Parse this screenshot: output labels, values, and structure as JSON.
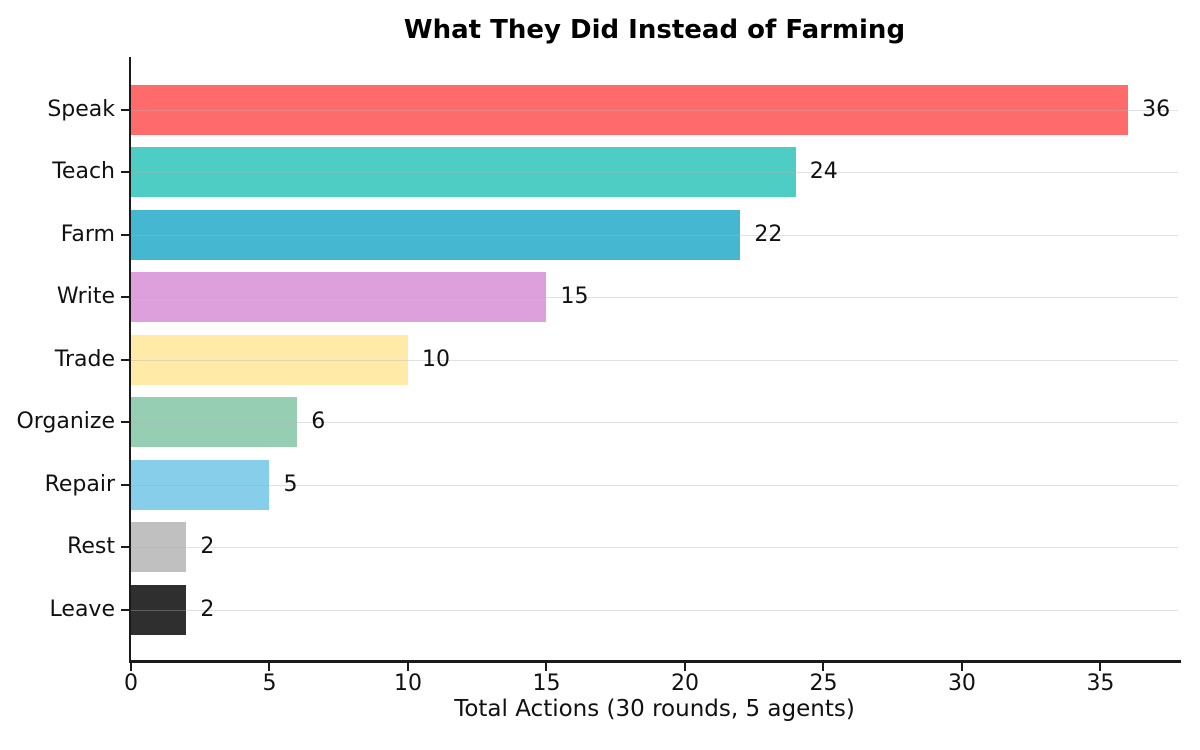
{
  "chart_data": {
    "type": "bar",
    "orientation": "horizontal",
    "title": "What They Did Instead of Farming",
    "xlabel": "Total Actions (30 rounds, 5 agents)",
    "ylabel": "",
    "categories": [
      "Speak",
      "Teach",
      "Farm",
      "Write",
      "Trade",
      "Organize",
      "Repair",
      "Rest",
      "Leave"
    ],
    "values": [
      36,
      24,
      22,
      15,
      10,
      6,
      5,
      2,
      2
    ],
    "value_labels": [
      "36",
      "24",
      "22",
      "15",
      "10",
      "6",
      "5",
      "2",
      "2"
    ],
    "bar_colors": [
      "#FF6B6B",
      "#4ECDC4",
      "#45B7D1",
      "#DDA0DD",
      "#FFEAA7",
      "#96CEB4",
      "#87CEEB",
      "#C0C0C0",
      "#2F2F2F"
    ],
    "xticks": [
      0,
      5,
      10,
      15,
      20,
      25,
      30,
      35
    ],
    "xlim": [
      0,
      37.8
    ],
    "grid": "horizontal lines at each category, translucent gray, drawn over bars",
    "legend": null
  },
  "style": {
    "background_color": "#ffffff",
    "axis_spine_color": "#1a1a1a",
    "text_color": "#111111",
    "grid_color": "#b0b0b0"
  }
}
